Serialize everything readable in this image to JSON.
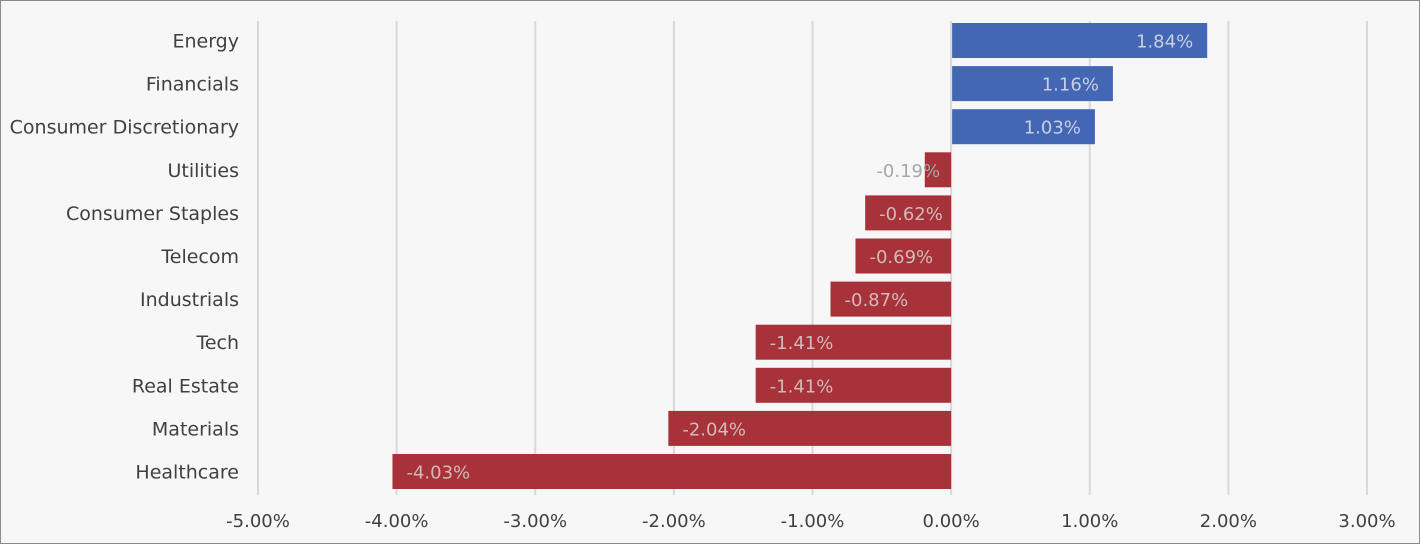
{
  "chart_data": {
    "type": "bar",
    "orientation": "horizontal",
    "title": "",
    "xlabel": "",
    "ylabel": "",
    "categories": [
      "Energy",
      "Financials",
      "Consumer Discretionary",
      "Utilities",
      "Consumer Staples",
      "Telecom",
      "Industrials",
      "Tech",
      "Real Estate",
      "Materials",
      "Healthcare"
    ],
    "values": [
      1.84,
      1.16,
      1.03,
      -0.19,
      -0.62,
      -0.69,
      -0.87,
      -1.41,
      -1.41,
      -2.04,
      -4.03
    ],
    "data_labels": [
      "1.84%",
      "1.16%",
      "1.03%",
      "-0.19%",
      "-0.62%",
      "-0.69%",
      "-0.87%",
      "-1.41%",
      "-1.41%",
      "-2.04%",
      "-4.03%"
    ],
    "xlim": [
      -5,
      3
    ],
    "x_ticks": [
      -5,
      -4,
      -3,
      -2,
      -1,
      0,
      1,
      2,
      3
    ],
    "x_tick_labels": [
      "-5.00%",
      "-4.00%",
      "-3.00%",
      "-2.00%",
      "-1.00%",
      "0.00%",
      "1.00%",
      "2.00%",
      "3.00%"
    ],
    "grid": "vertical",
    "legend": "none",
    "colors": {
      "positive": "#4366b5",
      "negative": "#a8323a",
      "positive_label": "#c9cfe0",
      "negative_label": "#d2b9ba",
      "small_label": "#a6a6a6",
      "grid": "#d9d9d9",
      "text": "#404040"
    }
  }
}
